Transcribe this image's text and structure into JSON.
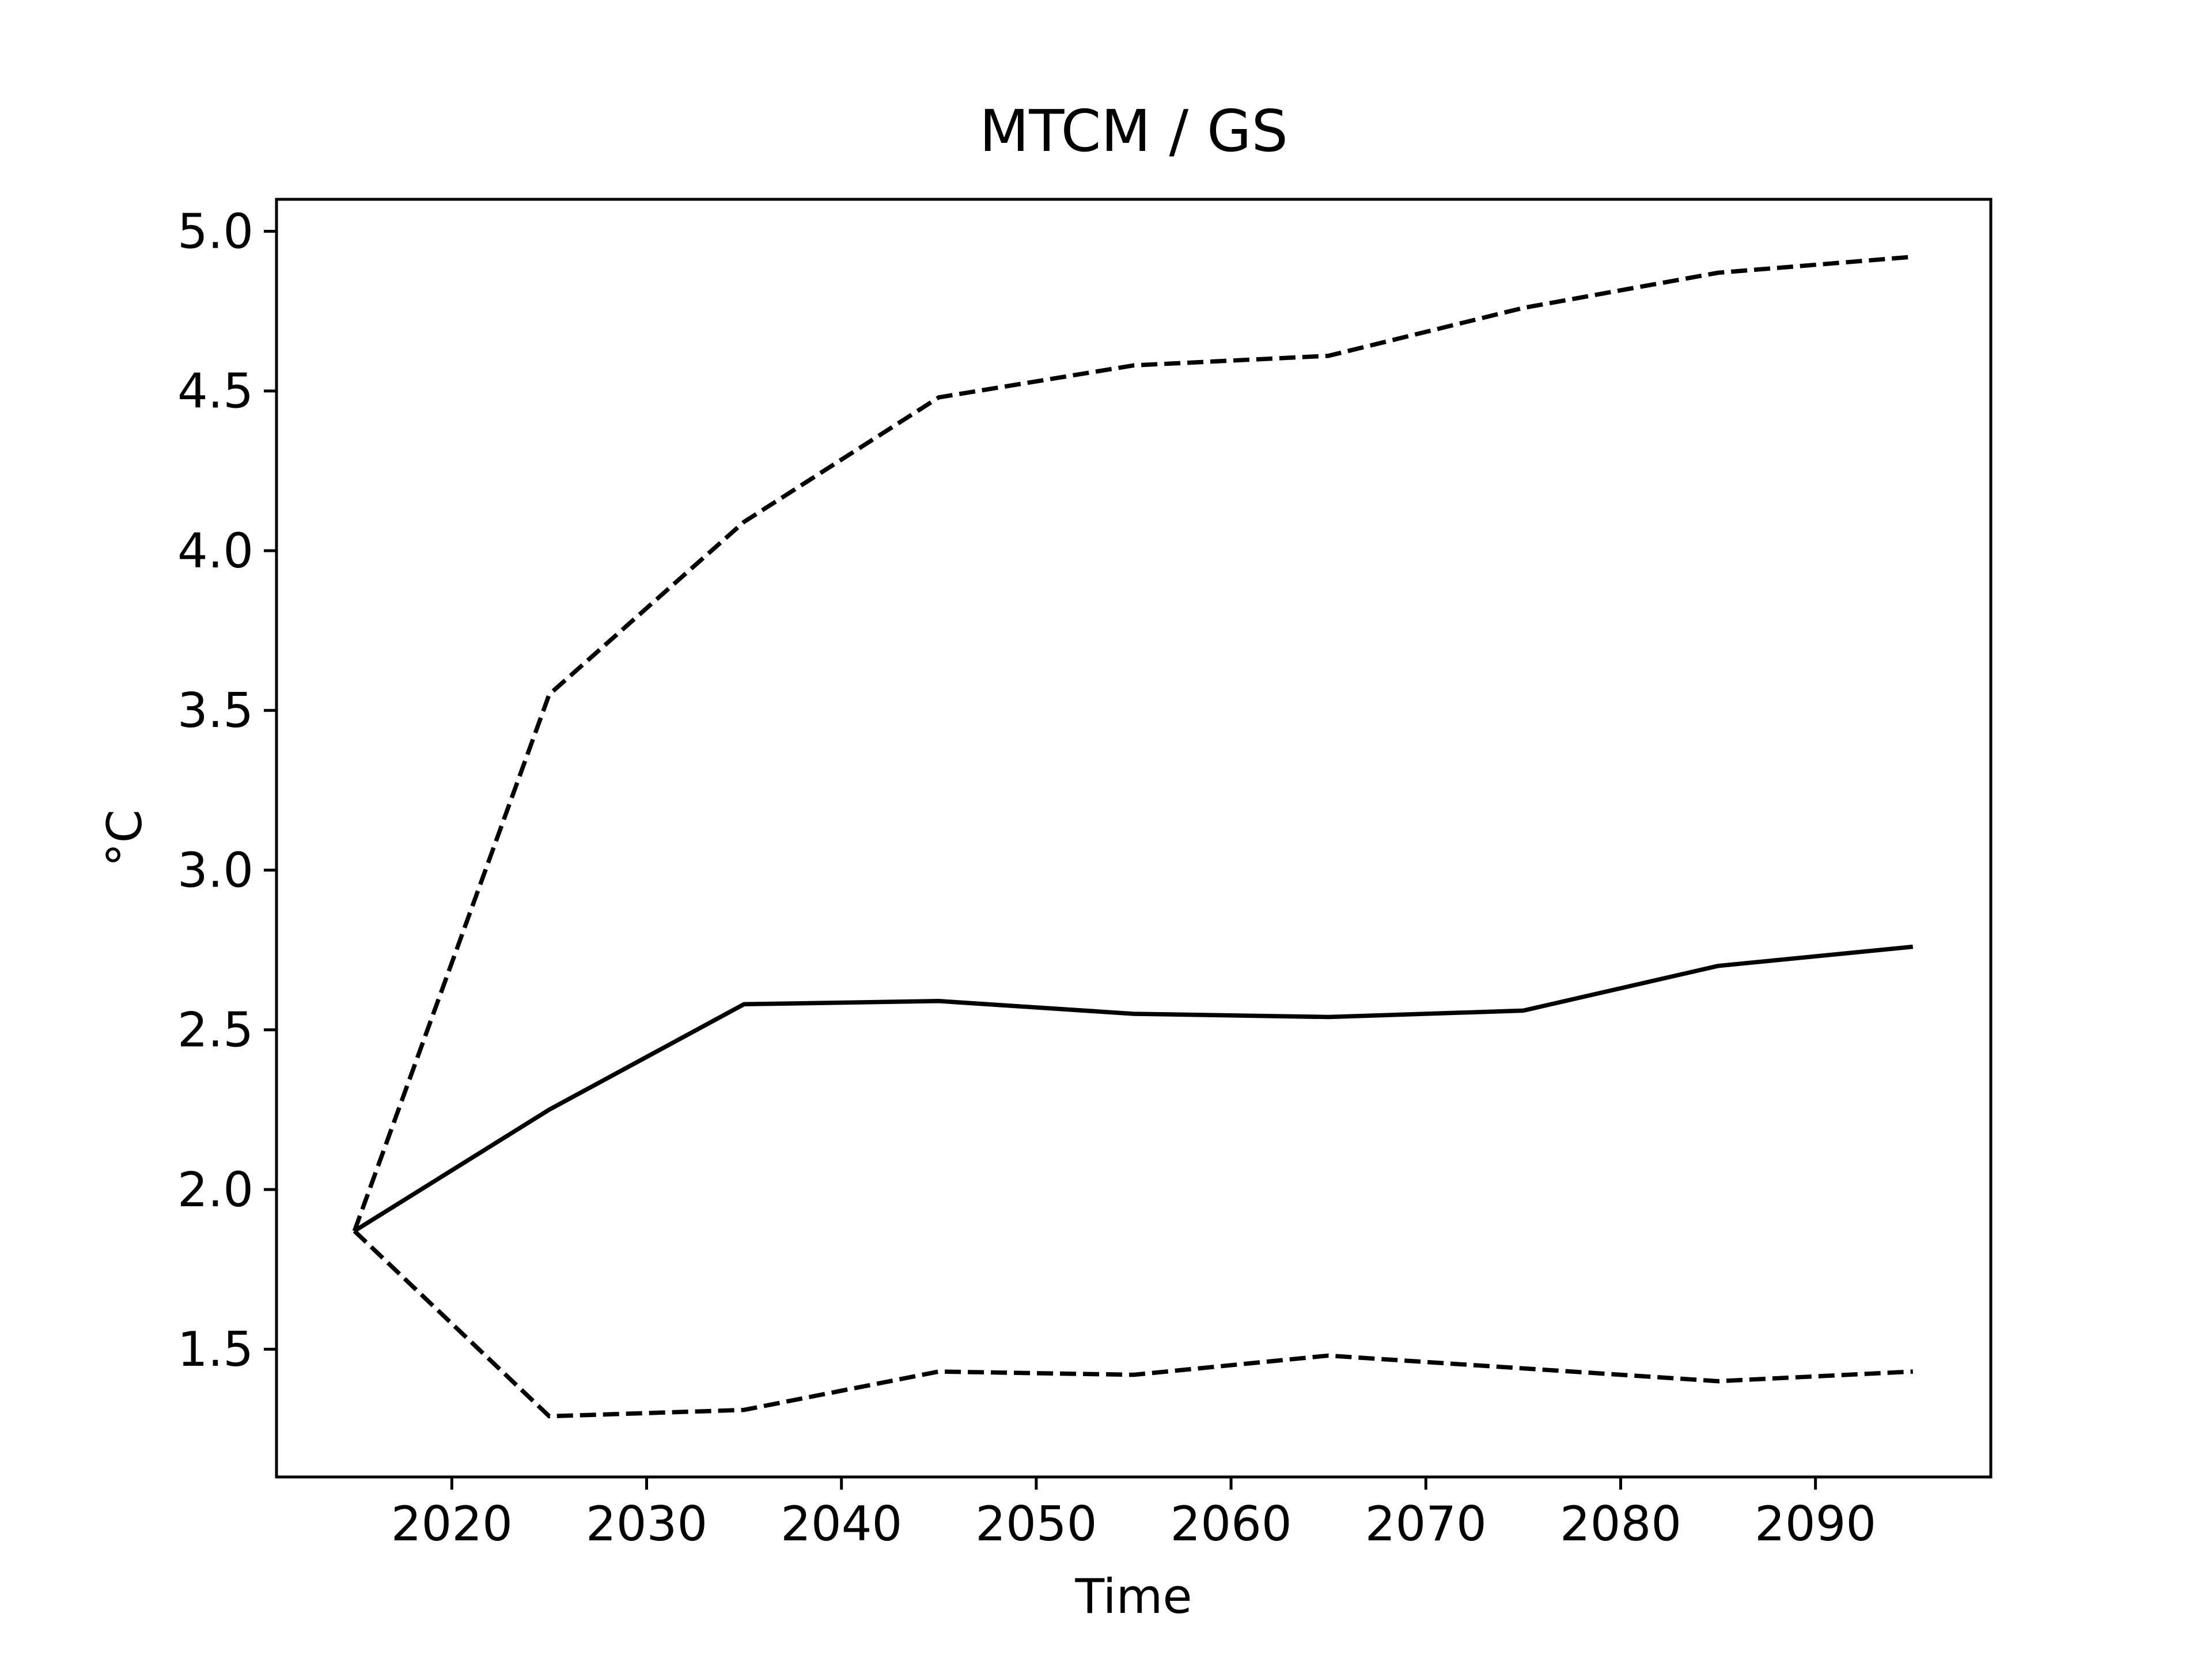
{
  "chart_data": {
    "type": "line",
    "title": "MTCM / GS",
    "xlabel": "Time",
    "ylabel": "°C",
    "xlim": [
      2011,
      2099
    ],
    "ylim": [
      1.1,
      5.1
    ],
    "x_ticks": [
      2020,
      2030,
      2040,
      2050,
      2060,
      2070,
      2080,
      2090
    ],
    "y_ticks": [
      1.5,
      2.0,
      2.5,
      3.0,
      3.5,
      4.0,
      4.5,
      5.0
    ],
    "x_tick_labels": [
      "2020",
      "2030",
      "2040",
      "2050",
      "2060",
      "2070",
      "2080",
      "2090"
    ],
    "y_tick_labels": [
      "1.5",
      "2.0",
      "2.5",
      "3.0",
      "3.5",
      "4.0",
      "4.5",
      "5.0"
    ],
    "grid": false,
    "line_color": "#000000",
    "x": [
      2015,
      2025,
      2035,
      2045,
      2055,
      2065,
      2075,
      2085,
      2095
    ],
    "series": [
      {
        "style": "dashed",
        "values": [
          1.87,
          3.55,
          4.09,
          4.48,
          4.58,
          4.61,
          4.76,
          4.87,
          4.92
        ]
      },
      {
        "style": "solid",
        "values": [
          1.87,
          2.25,
          2.58,
          2.59,
          2.55,
          2.54,
          2.56,
          2.7,
          2.76
        ]
      },
      {
        "style": "dashed",
        "values": [
          1.87,
          1.29,
          1.31,
          1.43,
          1.42,
          1.48,
          1.44,
          1.4,
          1.43
        ]
      }
    ]
  }
}
